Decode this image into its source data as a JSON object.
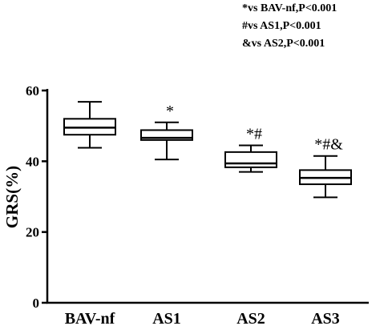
{
  "legend": [
    "*vs BAV-nf,P<0.001",
    "#vs AS1,P<0.001",
    "&vs AS2,P<0.001"
  ],
  "chart_data": {
    "type": "box",
    "ylabel": "GRS(%)",
    "xlabel": "",
    "ylim": [
      0,
      60
    ],
    "yticks": [
      "0",
      "20",
      "40",
      "60"
    ],
    "categories": [
      "BAV-nf",
      "AS1",
      "AS2",
      "AS3"
    ],
    "boxes": [
      {
        "min": 43.8,
        "q1": 47.5,
        "median": 49.5,
        "q3": 52.0,
        "max": 56.8,
        "annotation": ""
      },
      {
        "min": 40.5,
        "q1": 46.0,
        "median": 46.6,
        "q3": 48.8,
        "max": 51.0,
        "annotation": "*"
      },
      {
        "min": 37.0,
        "q1": 38.3,
        "median": 39.4,
        "q3": 42.6,
        "max": 44.5,
        "annotation": "*#"
      },
      {
        "min": 29.8,
        "q1": 33.5,
        "median": 35.3,
        "q3": 37.5,
        "max": 41.5,
        "annotation": "*#&"
      }
    ],
    "grid": false,
    "legend_position": "top-right"
  }
}
